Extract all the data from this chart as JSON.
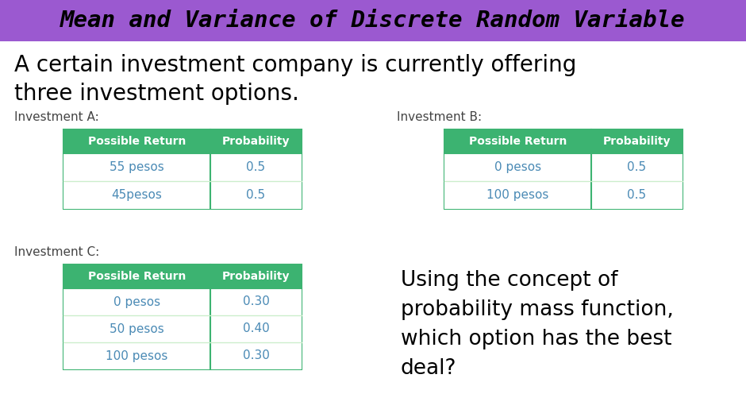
{
  "title": "Mean and Variance of Discrete Random Variable",
  "title_bg_color": "#9b59d0",
  "title_text_color": "#000000",
  "bg_color": "#ffffff",
  "intro_line1": "A certain investment company is currently offering",
  "intro_line2": "three investment options.",
  "inv_a_label": "Investment A:",
  "inv_b_label": "Investment B:",
  "inv_c_label": "Investment C:",
  "table_header_color": "#3cb371",
  "table_header_text": "#ffffff",
  "table_cell_text": "#4a8ab5",
  "table_border_color": "#3cb371",
  "table_row_sep_color": "#cceecc",
  "col_headers": [
    "Possible Return",
    "Probability"
  ],
  "inv_a_data": [
    [
      "55 pesos",
      "0.5"
    ],
    [
      "45pesos",
      "0.5"
    ]
  ],
  "inv_b_data": [
    [
      "0 pesos",
      "0.5"
    ],
    [
      "100 pesos",
      "0.5"
    ]
  ],
  "inv_c_data": [
    [
      "0 pesos",
      "0.30"
    ],
    [
      "50 pesos",
      "0.40"
    ],
    [
      "100 pesos",
      "0.30"
    ]
  ],
  "question_text": "Using the concept of\nprobability mass function,\nwhich option has the best\ndeal?",
  "question_text_color": "#000000",
  "label_color": "#444444",
  "title_fontsize": 21,
  "intro_fontsize": 20,
  "label_fontsize": 11,
  "header_fontsize": 10,
  "cell_fontsize": 11,
  "question_fontsize": 19
}
